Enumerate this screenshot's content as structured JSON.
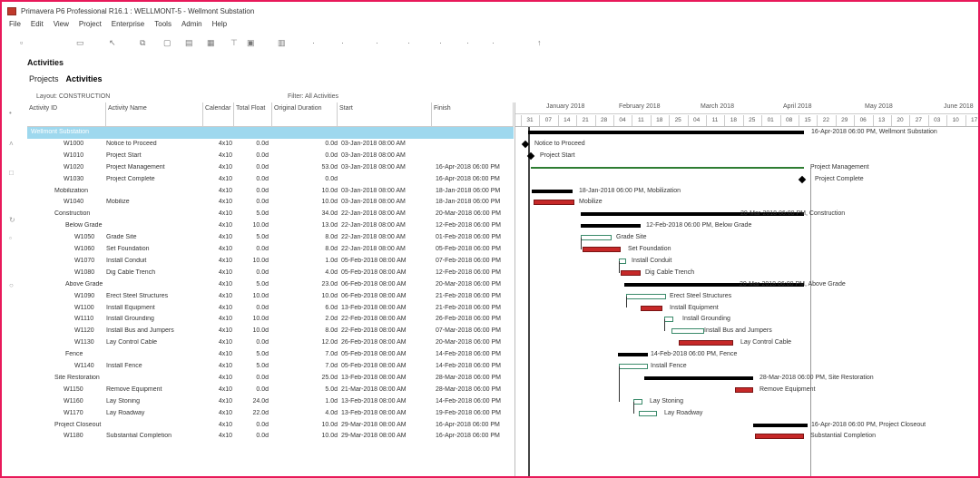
{
  "window": {
    "title": "Primavera P6 Professional R16.1 : WELLMONT-5 - Wellmont Substation"
  },
  "menu": [
    "File",
    "Edit",
    "View",
    "Project",
    "Enterprise",
    "Tools",
    "Admin",
    "Help"
  ],
  "page": {
    "heading": "Activities",
    "tabs": [
      {
        "label": "Projects"
      },
      {
        "label": "Activities"
      }
    ]
  },
  "layout_label": "Layout: CONSTRUCTION",
  "filter_label": "Filter: All Activities",
  "columns": [
    "Activity ID",
    "Activity Name",
    "Calendar",
    "Total Float",
    "Original Duration",
    "Start",
    "Finish"
  ],
  "rows": [
    {
      "id": "Wellmont Substation",
      "name": "",
      "cal": "",
      "tf": "",
      "od": "",
      "start": "",
      "finish": "",
      "level": 0,
      "selected": true
    },
    {
      "id": "W1000",
      "name": "Notice to Proceed",
      "cal": "4x10",
      "tf": "0.0d",
      "od": "0.0d",
      "start": "03-Jan-2018 08:00 AM",
      "finish": "",
      "level": 2
    },
    {
      "id": "W1010",
      "name": "Project Start",
      "cal": "4x10",
      "tf": "0.0d",
      "od": "0.0d",
      "start": "03-Jan-2018 08:00 AM",
      "finish": "",
      "level": 2
    },
    {
      "id": "W1020",
      "name": "Project Management",
      "cal": "4x10",
      "tf": "0.0d",
      "od": "53.0d",
      "start": "03-Jan-2018 08:00 AM",
      "finish": "16-Apr-2018 06:00 PM",
      "level": 2
    },
    {
      "id": "W1030",
      "name": "Project Complete",
      "cal": "4x10",
      "tf": "0.0d",
      "od": "0.0d",
      "start": "",
      "finish": "16-Apr-2018 06:00 PM",
      "level": 2
    },
    {
      "id": "Mobilization",
      "name": "",
      "cal": "4x10",
      "tf": "0.0d",
      "od": "10.0d",
      "start": "03-Jan-2018 08:00 AM",
      "finish": "18-Jan-2018 06:00 PM",
      "level": 1
    },
    {
      "id": "W1040",
      "name": "Mobilize",
      "cal": "4x10",
      "tf": "0.0d",
      "od": "10.0d",
      "start": "03-Jan-2018 08:00 AM",
      "finish": "18-Jan-2018 06:00 PM",
      "level": 2
    },
    {
      "id": "Construction",
      "name": "",
      "cal": "4x10",
      "tf": "5.0d",
      "od": "34.0d",
      "start": "22-Jan-2018 08:00 AM",
      "finish": "20-Mar-2018 06:00 PM",
      "level": 1
    },
    {
      "id": "Below Grade",
      "name": "",
      "cal": "4x10",
      "tf": "10.0d",
      "od": "13.0d",
      "start": "22-Jan-2018 08:00 AM",
      "finish": "12-Feb-2018 06:00 PM",
      "level": 1.5
    },
    {
      "id": "W1050",
      "name": "Grade Site",
      "cal": "4x10",
      "tf": "5.0d",
      "od": "8.0d",
      "start": "22-Jan-2018 08:00 AM",
      "finish": "01-Feb-2018 06:00 PM",
      "level": 3
    },
    {
      "id": "W1060",
      "name": "Set Foundation",
      "cal": "4x10",
      "tf": "0.0d",
      "od": "8.0d",
      "start": "22-Jan-2018 08:00 AM",
      "finish": "05-Feb-2018 06:00 PM",
      "level": 3
    },
    {
      "id": "W1070",
      "name": "Install Conduit",
      "cal": "4x10",
      "tf": "10.0d",
      "od": "1.0d",
      "start": "05-Feb-2018 08:00 AM",
      "finish": "07-Feb-2018 06:00 PM",
      "level": 3
    },
    {
      "id": "W1080",
      "name": "Dig Cable Trench",
      "cal": "4x10",
      "tf": "0.0d",
      "od": "4.0d",
      "start": "05-Feb-2018 08:00 AM",
      "finish": "12-Feb-2018 06:00 PM",
      "level": 3
    },
    {
      "id": "Above Grade",
      "name": "",
      "cal": "4x10",
      "tf": "5.0d",
      "od": "23.0d",
      "start": "06-Feb-2018 08:00 AM",
      "finish": "20-Mar-2018 06:00 PM",
      "level": 1.5
    },
    {
      "id": "W1090",
      "name": "Erect Steel Structures",
      "cal": "4x10",
      "tf": "10.0d",
      "od": "10.0d",
      "start": "06-Feb-2018 08:00 AM",
      "finish": "21-Feb-2018 06:00 PM",
      "level": 3
    },
    {
      "id": "W1100",
      "name": "Install Equipment",
      "cal": "4x10",
      "tf": "0.0d",
      "od": "6.0d",
      "start": "13-Feb-2018 08:00 AM",
      "finish": "21-Feb-2018 06:00 PM",
      "level": 3
    },
    {
      "id": "W1110",
      "name": "Install Grounding",
      "cal": "4x10",
      "tf": "10.0d",
      "od": "2.0d",
      "start": "22-Feb-2018 08:00 AM",
      "finish": "26-Feb-2018 06:00 PM",
      "level": 3
    },
    {
      "id": "W1120",
      "name": "Install Bus and Jumpers",
      "cal": "4x10",
      "tf": "10.0d",
      "od": "8.0d",
      "start": "22-Feb-2018 08:00 AM",
      "finish": "07-Mar-2018 06:00 PM",
      "level": 3
    },
    {
      "id": "W1130",
      "name": "Lay Control Cable",
      "cal": "4x10",
      "tf": "0.0d",
      "od": "12.0d",
      "start": "26-Feb-2018 08:00 AM",
      "finish": "20-Mar-2018 06:00 PM",
      "level": 3
    },
    {
      "id": "Fence",
      "name": "",
      "cal": "4x10",
      "tf": "5.0d",
      "od": "7.0d",
      "start": "05-Feb-2018 08:00 AM",
      "finish": "14-Feb-2018 06:00 PM",
      "level": 1.5
    },
    {
      "id": "W1140",
      "name": "Install Fence",
      "cal": "4x10",
      "tf": "5.0d",
      "od": "7.0d",
      "start": "05-Feb-2018 08:00 AM",
      "finish": "14-Feb-2018 06:00 PM",
      "level": 3
    },
    {
      "id": "Site Restoration",
      "name": "",
      "cal": "4x10",
      "tf": "0.0d",
      "od": "25.0d",
      "start": "13-Feb-2018 08:00 AM",
      "finish": "28-Mar-2018 06:00 PM",
      "level": 1
    },
    {
      "id": "W1150",
      "name": "Remove Equipment",
      "cal": "4x10",
      "tf": "0.0d",
      "od": "5.0d",
      "start": "21-Mar-2018 08:00 AM",
      "finish": "28-Mar-2018 06:00 PM",
      "level": 2
    },
    {
      "id": "W1160",
      "name": "Lay Stoning",
      "cal": "4x10",
      "tf": "24.0d",
      "od": "1.0d",
      "start": "13-Feb-2018 08:00 AM",
      "finish": "14-Feb-2018 06:00 PM",
      "level": 2
    },
    {
      "id": "W1170",
      "name": "Lay Roadway",
      "cal": "4x10",
      "tf": "22.0d",
      "od": "4.0d",
      "start": "13-Feb-2018 08:00 AM",
      "finish": "19-Feb-2018 06:00 PM",
      "level": 2
    },
    {
      "id": "Project Closeout",
      "name": "",
      "cal": "4x10",
      "tf": "0.0d",
      "od": "10.0d",
      "start": "29-Mar-2018 08:00 AM",
      "finish": "16-Apr-2018 06:00 PM",
      "level": 1
    },
    {
      "id": "W1180",
      "name": "Substantial Completion",
      "cal": "4x10",
      "tf": "0.0d",
      "od": "10.0d",
      "start": "29-Mar-2018 08:00 AM",
      "finish": "16-Apr-2018 06:00 PM",
      "level": 2
    }
  ],
  "timescale": {
    "months": [
      "January 2018",
      "February 2018",
      "March 2018",
      "April 2018",
      "May 2018",
      "June 2018"
    ],
    "weeks": [
      "31",
      "07",
      "14",
      "21",
      "28",
      "04",
      "11",
      "18",
      "25",
      "04",
      "11",
      "18",
      "25",
      "01",
      "08",
      "15",
      "22",
      "29",
      "06",
      "13",
      "20",
      "27",
      "03",
      "10",
      "17"
    ]
  },
  "gantt_labels": [
    "16-Apr-2018 06:00 PM, Wellmont Substation",
    "Notice to Proceed",
    "Project Start",
    "Project Management",
    "Project Complete",
    "18-Jan-2018 06:00 PM, Mobilization",
    "Mobilize",
    "20-Mar-2018 06:00 PM, Construction",
    "12-Feb-2018 06:00 PM, Below Grade",
    "Grade Site",
    "Set Foundation",
    "Install Conduit",
    "Dig Cable Trench",
    "20-Mar-2018 06:00 PM, Above Grade",
    "Erect Steel Structures",
    "Install Equipment",
    "Install Grounding",
    "Install Bus and Jumpers",
    "Lay Control Cable",
    "14-Feb-2018 06:00 PM, Fence",
    "Install Fence",
    "28-Mar-2018 06:00 PM, Site Restoration",
    "Remove Equipment",
    "Lay Stoning",
    "Lay Roadway",
    "16-Apr-2018 06:00 PM, Project Closeout",
    "Substantial Completion"
  ]
}
